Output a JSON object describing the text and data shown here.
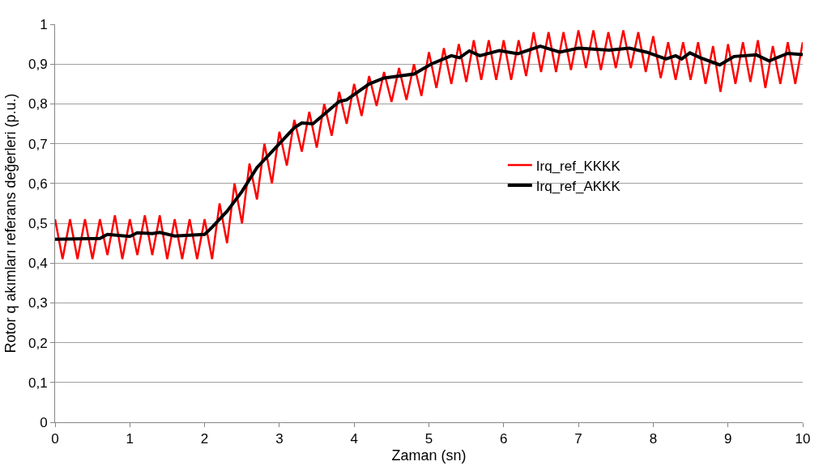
{
  "chart_data": {
    "type": "line",
    "xlabel": "Zaman (sn)",
    "ylabel": "Rotor q akımları referans değerleri (p.u.)",
    "x": [
      0,
      0.6,
      0.7,
      1.0,
      1.1,
      1.3,
      1.4,
      1.6,
      2.0,
      2.1,
      2.3,
      2.5,
      2.7,
      3.0,
      3.2,
      3.3,
      3.45,
      3.7,
      3.8,
      3.9,
      4.2,
      4.4,
      4.6,
      4.8,
      5.03,
      5.3,
      5.41,
      5.54,
      5.68,
      5.94,
      6.19,
      6.49,
      6.75,
      7.0,
      7.41,
      7.68,
      7.91,
      8.17,
      8.3,
      8.38,
      8.49,
      8.63,
      8.89,
      9.08,
      9.38,
      9.55,
      9.8,
      10.0
    ],
    "series": [
      {
        "name": "Irq_ref_KKKK",
        "color": "#ff0000",
        "x": [
          0,
          0.1,
          0.2,
          0.3,
          0.4,
          0.5,
          0.6,
          0.7,
          0.8,
          0.9,
          1.0,
          1.1,
          1.2,
          1.3,
          1.4,
          1.5,
          1.6,
          1.7,
          1.8,
          1.9,
          2.0,
          2.1,
          2.2,
          2.3,
          2.4,
          2.5,
          2.6,
          2.7,
          2.8,
          2.9,
          3.0,
          3.1,
          3.2,
          3.3,
          3.4,
          3.5,
          3.6,
          3.7,
          3.8,
          3.9,
          4.0,
          4.1,
          4.2,
          4.3,
          4.4,
          4.5,
          4.6,
          4.7,
          4.8,
          4.9,
          5.0,
          5.1,
          5.2,
          5.3,
          5.4,
          5.5,
          5.6,
          5.7,
          5.8,
          5.9,
          6.0,
          6.1,
          6.2,
          6.3,
          6.4,
          6.5,
          6.6,
          6.7,
          6.8,
          6.9,
          7.0,
          7.1,
          7.2,
          7.3,
          7.4,
          7.5,
          7.6,
          7.7,
          7.8,
          7.9,
          8.0,
          8.1,
          8.2,
          8.3,
          8.4,
          8.5,
          8.6,
          8.7,
          8.8,
          8.9,
          9.0,
          9.1,
          9.2,
          9.3,
          9.4,
          9.5,
          9.6,
          9.7,
          9.8,
          9.9,
          10.0
        ],
        "values": [
          0.51,
          0.41,
          0.51,
          0.41,
          0.51,
          0.41,
          0.51,
          0.42,
          0.52,
          0.41,
          0.51,
          0.42,
          0.52,
          0.42,
          0.52,
          0.41,
          0.51,
          0.41,
          0.51,
          0.41,
          0.51,
          0.41,
          0.55,
          0.45,
          0.6,
          0.5,
          0.65,
          0.56,
          0.7,
          0.6,
          0.73,
          0.645,
          0.76,
          0.68,
          0.78,
          0.69,
          0.8,
          0.72,
          0.83,
          0.75,
          0.85,
          0.77,
          0.87,
          0.795,
          0.88,
          0.805,
          0.89,
          0.81,
          0.9,
          0.82,
          0.93,
          0.84,
          0.94,
          0.85,
          0.95,
          0.855,
          0.96,
          0.86,
          0.96,
          0.86,
          0.96,
          0.86,
          0.96,
          0.87,
          0.98,
          0.88,
          0.98,
          0.88,
          0.98,
          0.885,
          0.985,
          0.89,
          0.985,
          0.885,
          0.98,
          0.89,
          0.985,
          0.89,
          0.98,
          0.88,
          0.97,
          0.865,
          0.955,
          0.86,
          0.955,
          0.86,
          0.955,
          0.85,
          0.945,
          0.83,
          0.95,
          0.85,
          0.955,
          0.855,
          0.96,
          0.84,
          0.945,
          0.85,
          0.955,
          0.85,
          0.955
        ]
      },
      {
        "name": "Irq_ref_AKKK",
        "color": "#000000",
        "values": [
          0.46,
          0.462,
          0.472,
          0.467,
          0.476,
          0.474,
          0.477,
          0.468,
          0.472,
          0.49,
          0.53,
          0.58,
          0.64,
          0.7,
          0.74,
          0.752,
          0.75,
          0.79,
          0.806,
          0.81,
          0.85,
          0.865,
          0.87,
          0.875,
          0.9,
          0.921,
          0.916,
          0.933,
          0.921,
          0.934,
          0.926,
          0.945,
          0.93,
          0.94,
          0.935,
          0.94,
          0.93,
          0.913,
          0.921,
          0.913,
          0.928,
          0.916,
          0.898,
          0.919,
          0.923,
          0.908,
          0.927,
          0.924
        ]
      }
    ],
    "xlim": [
      0,
      10
    ],
    "xticks": [
      0,
      1,
      2,
      3,
      4,
      5,
      6,
      7,
      8,
      9,
      10
    ],
    "ylim": [
      0,
      1
    ],
    "yticks": [
      0,
      {
        "value": 0.1,
        "label": "0,1"
      },
      {
        "value": 0.2,
        "label": "0,2"
      },
      {
        "value": 0.3,
        "label": "0,3"
      },
      {
        "value": 0.4,
        "label": "0,4"
      },
      {
        "value": 0.5,
        "label": "0,5"
      },
      {
        "value": 0.6,
        "label": "0,6"
      },
      {
        "value": 0.7,
        "label": "0,7"
      },
      {
        "value": 0.8,
        "label": "0,8"
      },
      {
        "value": 0.9,
        "label": "0,9"
      },
      1
    ],
    "grid": "y",
    "legend": "right",
    "marker": "none",
    "line_style": "solid"
  }
}
